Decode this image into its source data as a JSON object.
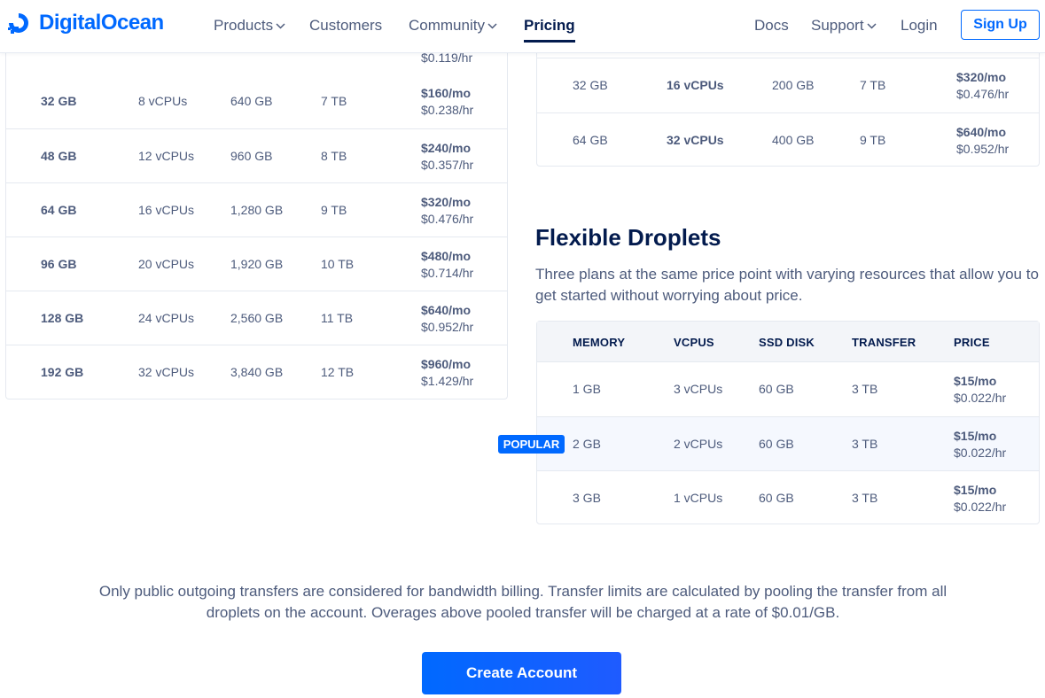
{
  "brand": {
    "name": "DigitalOcean",
    "color": "#0069ff"
  },
  "nav": {
    "products": "Products",
    "customers": "Customers",
    "community": "Community",
    "pricing": "Pricing",
    "docs": "Docs",
    "support": "Support",
    "login": "Login",
    "signup": "Sign Up"
  },
  "left_table": {
    "partial_top_price_hr": "$0.119/hr",
    "rows": [
      {
        "memory": "32 GB",
        "vcpus": "8 vCPUs",
        "disk": "640 GB",
        "transfer": "7 TB",
        "price_mo": "$160/mo",
        "price_hr": "$0.238/hr"
      },
      {
        "memory": "48 GB",
        "vcpus": "12 vCPUs",
        "disk": "960 GB",
        "transfer": "8 TB",
        "price_mo": "$240/mo",
        "price_hr": "$0.357/hr"
      },
      {
        "memory": "64 GB",
        "vcpus": "16 vCPUs",
        "disk": "1,280 GB",
        "transfer": "9 TB",
        "price_mo": "$320/mo",
        "price_hr": "$0.476/hr"
      },
      {
        "memory": "96 GB",
        "vcpus": "20 vCPUs",
        "disk": "1,920 GB",
        "transfer": "10 TB",
        "price_mo": "$480/mo",
        "price_hr": "$0.714/hr"
      },
      {
        "memory": "128 GB",
        "vcpus": "24 vCPUs",
        "disk": "2,560 GB",
        "transfer": "11 TB",
        "price_mo": "$640/mo",
        "price_hr": "$0.952/hr"
      },
      {
        "memory": "192 GB",
        "vcpus": "32 vCPUs",
        "disk": "3,840 GB",
        "transfer": "12 TB",
        "price_mo": "$960/mo",
        "price_hr": "$1.429/hr"
      }
    ]
  },
  "right_table": {
    "rows": [
      {
        "memory": "32 GB",
        "vcpus": "16 vCPUs",
        "disk": "200 GB",
        "transfer": "7 TB",
        "price_mo": "$320/mo",
        "price_hr": "$0.476/hr"
      },
      {
        "memory": "64 GB",
        "vcpus": "32 vCPUs",
        "disk": "400 GB",
        "transfer": "9 TB",
        "price_mo": "$640/mo",
        "price_hr": "$0.952/hr"
      }
    ]
  },
  "flexible": {
    "title": "Flexible Droplets",
    "description": "Three plans at the same price point with varying resources that allow you to get started without worrying about price.",
    "headers": {
      "memory": "MEMORY",
      "vcpus": "VCPUS",
      "disk": "SSD DISK",
      "transfer": "TRANSFER",
      "price": "PRICE"
    },
    "popular_badge": "POPULAR",
    "rows": [
      {
        "memory": "1 GB",
        "vcpus": "3 vCPUs",
        "disk": "60 GB",
        "transfer": "3 TB",
        "price_mo": "$15/mo",
        "price_hr": "$0.022/hr"
      },
      {
        "memory": "2 GB",
        "vcpus": "2 vCPUs",
        "disk": "60 GB",
        "transfer": "3 TB",
        "price_mo": "$15/mo",
        "price_hr": "$0.022/hr"
      },
      {
        "memory": "3 GB",
        "vcpus": "1 vCPUs",
        "disk": "60 GB",
        "transfer": "3 TB",
        "price_mo": "$15/mo",
        "price_hr": "$0.022/hr"
      }
    ]
  },
  "footnote": "Only public outgoing transfers are considered for bandwidth billing. Transfer limits are calculated by pooling the transfer from all droplets on the account. Overages above pooled transfer will be charged at a rate of $0.01/GB.",
  "cta": "Create Account"
}
